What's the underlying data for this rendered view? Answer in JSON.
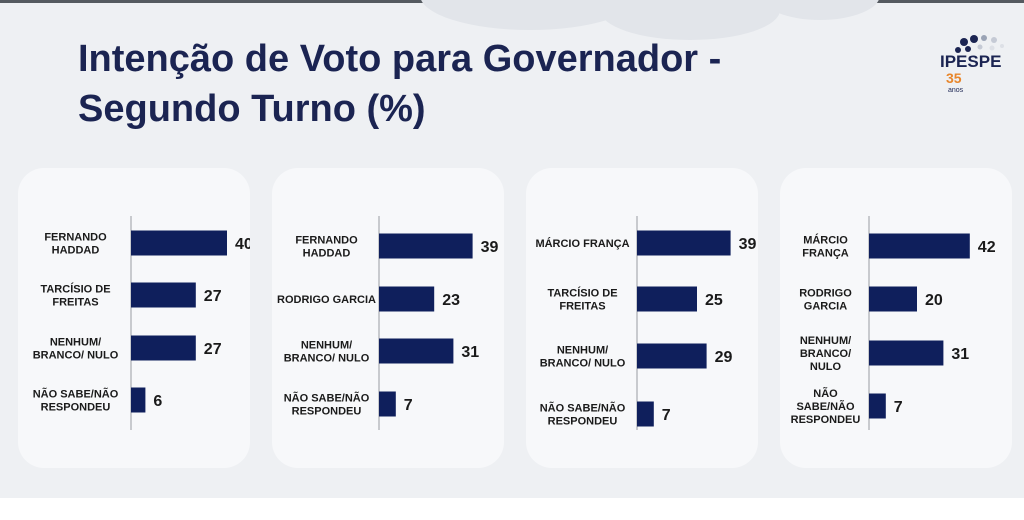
{
  "title_line1": "Intenção de Voto para Governador -",
  "title_line2": "Segundo Turno (%)",
  "logo": {
    "name": "IPESPE",
    "number": "35",
    "subtitle": "anos"
  },
  "colors": {
    "bar": "#0f1f5c",
    "title": "#1b2452",
    "accent": "#e8862b",
    "panel": "#f7f8fa",
    "background": "#eef0f3"
  },
  "chart_data": [
    {
      "type": "bar",
      "orientation": "horizontal",
      "categories": [
        [
          "FERNANDO",
          "HADDAD"
        ],
        [
          "TARCÍSIO DE",
          "FREITAS"
        ],
        [
          "NENHUM/",
          "BRANCO/ NULO"
        ],
        [
          "NÃO SABE/NÃO",
          "RESPONDEU"
        ]
      ],
      "values": [
        40,
        27,
        27,
        6
      ],
      "xlim": [
        0,
        50
      ]
    },
    {
      "type": "bar",
      "orientation": "horizontal",
      "categories": [
        [
          "FERNANDO",
          "HADDAD"
        ],
        [
          "RODRIGO GARCIA"
        ],
        [
          "NENHUM/",
          "BRANCO/ NULO"
        ],
        [
          "NÃO SABE/NÃO",
          "RESPONDEU"
        ]
      ],
      "values": [
        39,
        23,
        31,
        7
      ],
      "xlim": [
        0,
        50
      ]
    },
    {
      "type": "bar",
      "orientation": "horizontal",
      "categories": [
        [
          "MÁRCIO FRANÇA"
        ],
        [
          "TARCÍSIO DE",
          "FREITAS"
        ],
        [
          "NENHUM/",
          "BRANCO/ NULO"
        ],
        [
          "NÃO SABE/NÃO",
          "RESPONDEU"
        ]
      ],
      "values": [
        39,
        25,
        29,
        7
      ],
      "xlim": [
        0,
        50
      ]
    },
    {
      "type": "bar",
      "orientation": "horizontal",
      "categories": [
        [
          "MÁRCIO",
          "FRANÇA"
        ],
        [
          "RODRIGO",
          "GARCIA"
        ],
        [
          "NENHUM/",
          "BRANCO/",
          "NULO"
        ],
        [
          "NÃO",
          "SABE/NÃO",
          "RESPONDEU"
        ]
      ],
      "values": [
        42,
        20,
        31,
        7
      ],
      "xlim": [
        0,
        50
      ]
    }
  ]
}
